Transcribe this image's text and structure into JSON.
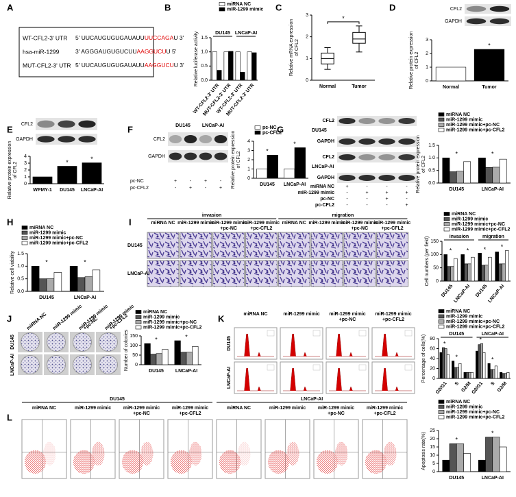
{
  "panels": {
    "A": {
      "label": "A",
      "rows": [
        {
          "name": "WT-CFL2-3' UTR",
          "seq": "5' UUCAUGUGUGAUAUU",
          "site": "UUCCAGA",
          "tail": "U 3'"
        },
        {
          "name": "hsa-miR-1299",
          "seq": "3' AGGGAUGUGUCUU",
          "site": "AAGGUCU",
          "tail": "U 5'"
        },
        {
          "name": "MUT-CFL2-3' UTR",
          "seq": "5' UUCAUGUGUGAUAUU",
          "site": "AAGGUCU",
          "tail": "U 3'"
        }
      ]
    },
    "B": {
      "label": "B"
    },
    "C": {
      "label": "C"
    },
    "D": {
      "label": "D",
      "blot": [
        "CFL2",
        "GAPDH"
      ]
    },
    "E": {
      "label": "E",
      "blot": [
        "CFL2",
        "GAPDH"
      ]
    },
    "F": {
      "label": "F",
      "lanes": [
        "DU145",
        "LNCaP-AI"
      ],
      "blot": [
        "CFL2",
        "GAPDH"
      ],
      "conditions": [
        {
          "name": "pc-NC",
          "signs": [
            "+",
            "-",
            "+",
            "-"
          ]
        },
        {
          "name": "pc-CFL2",
          "signs": [
            "-",
            "+",
            "-",
            "+"
          ]
        }
      ]
    },
    "G": {
      "label": "G",
      "blots": [
        {
          "cell": "DU145",
          "rows": [
            "CFL2",
            "GAPDH"
          ]
        },
        {
          "cell": "LNCaP-AI",
          "rows": [
            "CFL2",
            "GAPDH"
          ]
        }
      ],
      "conditions": [
        {
          "name": "miRNA NC",
          "signs": [
            "+",
            "-",
            "-",
            "-"
          ]
        },
        {
          "name": "miR-1299 mimic",
          "signs": [
            "-",
            "+",
            "+",
            "+"
          ]
        },
        {
          "name": "pc-NC",
          "signs": [
            "-",
            "-",
            "+",
            "-"
          ]
        },
        {
          "name": "pc-CFL2",
          "signs": [
            "-",
            "-",
            "-",
            "+"
          ]
        }
      ]
    },
    "H": {
      "label": "H"
    },
    "I": {
      "label": "I",
      "assays": [
        "invasion",
        "migration"
      ],
      "columns": [
        [
          "miRNA NC"
        ],
        [
          "miR-1299 mimic"
        ],
        [
          "miR-1299 mimic",
          "+pc-NC"
        ],
        [
          "miR-1299 mimic",
          "+pc-CFL2"
        ],
        [
          "miRNA NC"
        ],
        [
          "miR-1299 mimic"
        ],
        [
          "miR-1299 mimic",
          "+pc-NC"
        ],
        [
          "miR-1299 mimic",
          "+pc-CFL2"
        ]
      ],
      "rows": [
        "DU145",
        "LNCaP-AI"
      ]
    },
    "J": {
      "label": "J",
      "columns": [
        [
          "miRNA NC"
        ],
        [
          "miR-1299 mimic"
        ],
        [
          "miR-1299 mimic",
          "+pc-NC"
        ],
        [
          "miR-1299 mimic",
          "+pc-CFL2"
        ]
      ],
      "rows": [
        "DU145",
        "LNCaP-AI"
      ]
    },
    "K": {
      "label": "K",
      "columns": [
        [
          "miRNA NC"
        ],
        [
          "miR-1299 mimic"
        ],
        [
          "miR-1299 mimic",
          "+pc-NC"
        ],
        [
          "miR-1299 mimic",
          "+pc-CFL2"
        ]
      ],
      "rows": [
        "DU145",
        "LNCaP-AI"
      ]
    },
    "L": {
      "label": "L",
      "cells": [
        "DU145",
        "LNCaP-AI"
      ],
      "columns": [
        [
          "miRNA NC"
        ],
        [
          "miR-1299 mimic"
        ],
        [
          "miR-1299 mimic",
          "+pc-NC"
        ],
        [
          "miR-1299 mimic",
          "+pc-CFL2"
        ],
        [
          "miRNA NC"
        ],
        [
          "miR-1299 mimic"
        ],
        [
          "miR-1299 mimic",
          "+pc-NC"
        ],
        [
          "miR-1299 mimic",
          "+pc-CFL2"
        ]
      ]
    }
  },
  "chart_data": [
    {
      "type": "bar",
      "ylabel": [
        "Relative luciferase activity"
      ],
      "ylim": [
        0,
        1.5
      ],
      "yticks": [
        {
          "value": 0,
          "label": "0.0"
        },
        0.5,
        {
          "value": 1,
          "label": "1.0"
        },
        1.5
      ],
      "groups": [
        "DU145",
        "LNCaP-AI"
      ],
      "categories": [
        "WT-CFL2-3' UTR",
        "MUT-CFL2-3' UTR",
        "WT-CFL2-3' UTR",
        "MUT-CFL2-3' UTR"
      ],
      "series": [
        {
          "name": "miRNA NC",
          "color": "#ffffff",
          "values": [
            1.0,
            1.0,
            1.0,
            1.0
          ]
        },
        {
          "name": "miR-1299 mimic",
          "color": "#000000",
          "values": [
            0.35,
            1.02,
            0.28,
            0.97
          ]
        }
      ]
    },
    {
      "type": "box",
      "ylabel": [
        "Relative mRNA expression",
        "of CFL2"
      ],
      "ylim": [
        0,
        3
      ],
      "yticks": [
        0,
        1,
        2,
        3
      ],
      "categories": [
        "Normal",
        "Tumor"
      ],
      "boxes": [
        {
          "min": 0.5,
          "q1": 0.75,
          "median": 1.0,
          "q3": 1.25,
          "max": 1.5
        },
        {
          "min": 1.3,
          "q1": 1.7,
          "median": 1.9,
          "q3": 2.2,
          "max": 2.5
        }
      ],
      "annotation": "*"
    },
    {
      "type": "bar",
      "ylabel": [
        "Relative protein expression",
        "of CFL2"
      ],
      "ylim": [
        0,
        3
      ],
      "yticks": [
        0,
        1,
        2,
        3
      ],
      "categories": [
        "Normal",
        "Tumor"
      ],
      "values": [
        1.0,
        2.3
      ],
      "colors": [
        "#ffffff",
        "#000000"
      ],
      "annotation": "*"
    },
    {
      "type": "bar",
      "ylabel": [
        "Relative protein expression",
        "of CFL2"
      ],
      "ylim": [
        0,
        4
      ],
      "yticks": [
        0,
        1,
        2,
        3,
        4
      ],
      "categories": [
        "WPMY-1",
        "DU145",
        "LNCaP-AI"
      ],
      "values": [
        1.0,
        2.55,
        3.05
      ],
      "color": "#000000",
      "annotation": "*"
    },
    {
      "type": "bar",
      "ylabel": [
        "Relative protein expression",
        "of CFL2"
      ],
      "ylim": [
        0,
        4
      ],
      "yticks": [
        0,
        1,
        2,
        3,
        4
      ],
      "categories": [
        "DU145",
        "LNCaP-AI"
      ],
      "series": [
        {
          "name": "pc-NC",
          "color": "#ffffff",
          "values": [
            1.0,
            1.0
          ]
        },
        {
          "name": "pc-CFL2",
          "color": "#000000",
          "values": [
            2.5,
            3.3
          ]
        }
      ],
      "annotation": "*"
    },
    {
      "type": "bar",
      "ylabel": [
        "Relative protein expression",
        "of CFL2"
      ],
      "ylim": [
        0,
        1.5
      ],
      "yticks": [
        {
          "value": 0,
          "label": "0.0"
        },
        0.5,
        {
          "value": 1,
          "label": "1.0"
        },
        1.5
      ],
      "categories": [
        "DU145",
        "LNCaP-AI"
      ],
      "series": [
        {
          "name": "miRNA NC",
          "color": "#000000",
          "values": [
            1.0,
            1.0
          ]
        },
        {
          "name": "miR-1299 mimic",
          "color": "#555555",
          "values": [
            0.45,
            0.62
          ]
        },
        {
          "name": "miR-1299 mimic+pc-NC",
          "color": "#aaaaaa",
          "values": [
            0.47,
            0.63
          ]
        },
        {
          "name": "miR-1299 mimic+pc-CFL2",
          "color": "#ffffff",
          "values": [
            0.85,
            0.95
          ]
        }
      ],
      "annotation": "*"
    },
    {
      "type": "bar",
      "ylabel": [
        "Relative cell viability"
      ],
      "ylim": [
        0,
        1.5
      ],
      "yticks": [
        {
          "value": 0,
          "label": "0.0"
        },
        0.5,
        {
          "value": 1,
          "label": "1.0"
        },
        1.5
      ],
      "categories": [
        "DU145",
        "LNCaP-AI"
      ],
      "series": [
        {
          "name": "miRNA NC",
          "color": "#000000",
          "values": [
            1.0,
            1.0
          ]
        },
        {
          "name": "miR-1299 mimic",
          "color": "#555555",
          "values": [
            0.5,
            0.55
          ]
        },
        {
          "name": "miR-1299 mimic+pc-NC",
          "color": "#aaaaaa",
          "values": [
            0.5,
            0.58
          ]
        },
        {
          "name": "miR-1299 mimic+pc-CFL2",
          "color": "#ffffff",
          "values": [
            0.75,
            0.85
          ]
        }
      ],
      "annotation": "*"
    },
    {
      "type": "bar",
      "ylabel": [
        "Cell numbers (per field)"
      ],
      "ylim": [
        0,
        150
      ],
      "yticks": [
        0,
        50,
        100,
        150
      ],
      "groups": [
        "invasion",
        "migration"
      ],
      "categories": [
        "DU145",
        "LNCaP-AI",
        "DU145",
        "LNCaP-AI"
      ],
      "series": [
        {
          "name": "miRNA NC",
          "color": "#000000",
          "values": [
            100,
            100,
            105,
            110
          ]
        },
        {
          "name": "miR-1299 mimic",
          "color": "#555555",
          "values": [
            55,
            65,
            60,
            65
          ]
        },
        {
          "name": "miR-1299 mimic+pc-NC",
          "color": "#aaaaaa",
          "values": [
            55,
            65,
            60,
            65
          ]
        },
        {
          "name": "miR-1299 mimic+pc-CFL2",
          "color": "#ffffff",
          "values": [
            85,
            90,
            90,
            115
          ]
        }
      ],
      "annotation": "*"
    },
    {
      "type": "bar",
      "ylabel": [
        "Number of colonies"
      ],
      "ylim": [
        0,
        150
      ],
      "yticks": [
        0,
        50,
        100,
        150
      ],
      "categories": [
        "DU145",
        "LNCaP-AI"
      ],
      "series": [
        {
          "name": "miRNA NC",
          "color": "#000000",
          "values": [
            110,
            125
          ]
        },
        {
          "name": "miR-1299 mimic",
          "color": "#555555",
          "values": [
            55,
            65
          ]
        },
        {
          "name": "miR-1299 mimic+pc-NC",
          "color": "#aaaaaa",
          "values": [
            58,
            65
          ]
        },
        {
          "name": "miR-1299 mimic+pc-CFL2",
          "color": "#ffffff",
          "values": [
            80,
            95
          ]
        }
      ],
      "annotation": "*"
    },
    {
      "type": "bar",
      "ylabel": [
        "Percentage of cells(%)"
      ],
      "ylim": [
        0,
        80
      ],
      "yticks": [
        0,
        20,
        40,
        60,
        80
      ],
      "groups": [
        "DU145",
        "LNCaP-AI"
      ],
      "categories": [
        "G0/G1",
        "S",
        "G2/M",
        "G0/G1",
        "S",
        "G2/M"
      ],
      "series": [
        {
          "name": "miRNA NC",
          "color": "#000000",
          "values": [
            52,
            35,
            12,
            55,
            30,
            12
          ]
        },
        {
          "name": "miR-1299 mimic",
          "color": "#555555",
          "values": [
            62,
            22,
            12,
            68,
            18,
            10
          ]
        },
        {
          "name": "miR-1299 mimic+pc-NC",
          "color": "#aaaaaa",
          "values": [
            60,
            22,
            12,
            70,
            18,
            10
          ]
        },
        {
          "name": "miR-1299 mimic+pc-CFL2",
          "color": "#ffffff",
          "values": [
            48,
            30,
            12,
            52,
            25,
            12
          ]
        }
      ],
      "annotation": "*"
    },
    {
      "type": "bar",
      "ylabel": [
        "Apoptosis rate(%)"
      ],
      "ylim": [
        0,
        25
      ],
      "yticks": [
        0,
        5,
        10,
        15,
        20,
        25
      ],
      "categories": [
        "DU145",
        "LNCaP-AI"
      ],
      "series": [
        {
          "name": "miRNA NC",
          "color": "#000000",
          "values": [
            7,
            7
          ]
        },
        {
          "name": "miR-1299 mimic",
          "color": "#555555",
          "values": [
            17,
            21
          ]
        },
        {
          "name": "miR-1299 mimic+pc-NC",
          "color": "#aaaaaa",
          "values": [
            17,
            21
          ]
        },
        {
          "name": "miR-1299 mimic+pc-CFL2",
          "color": "#ffffff",
          "values": [
            11,
            15
          ]
        }
      ],
      "annotation": "*"
    }
  ]
}
